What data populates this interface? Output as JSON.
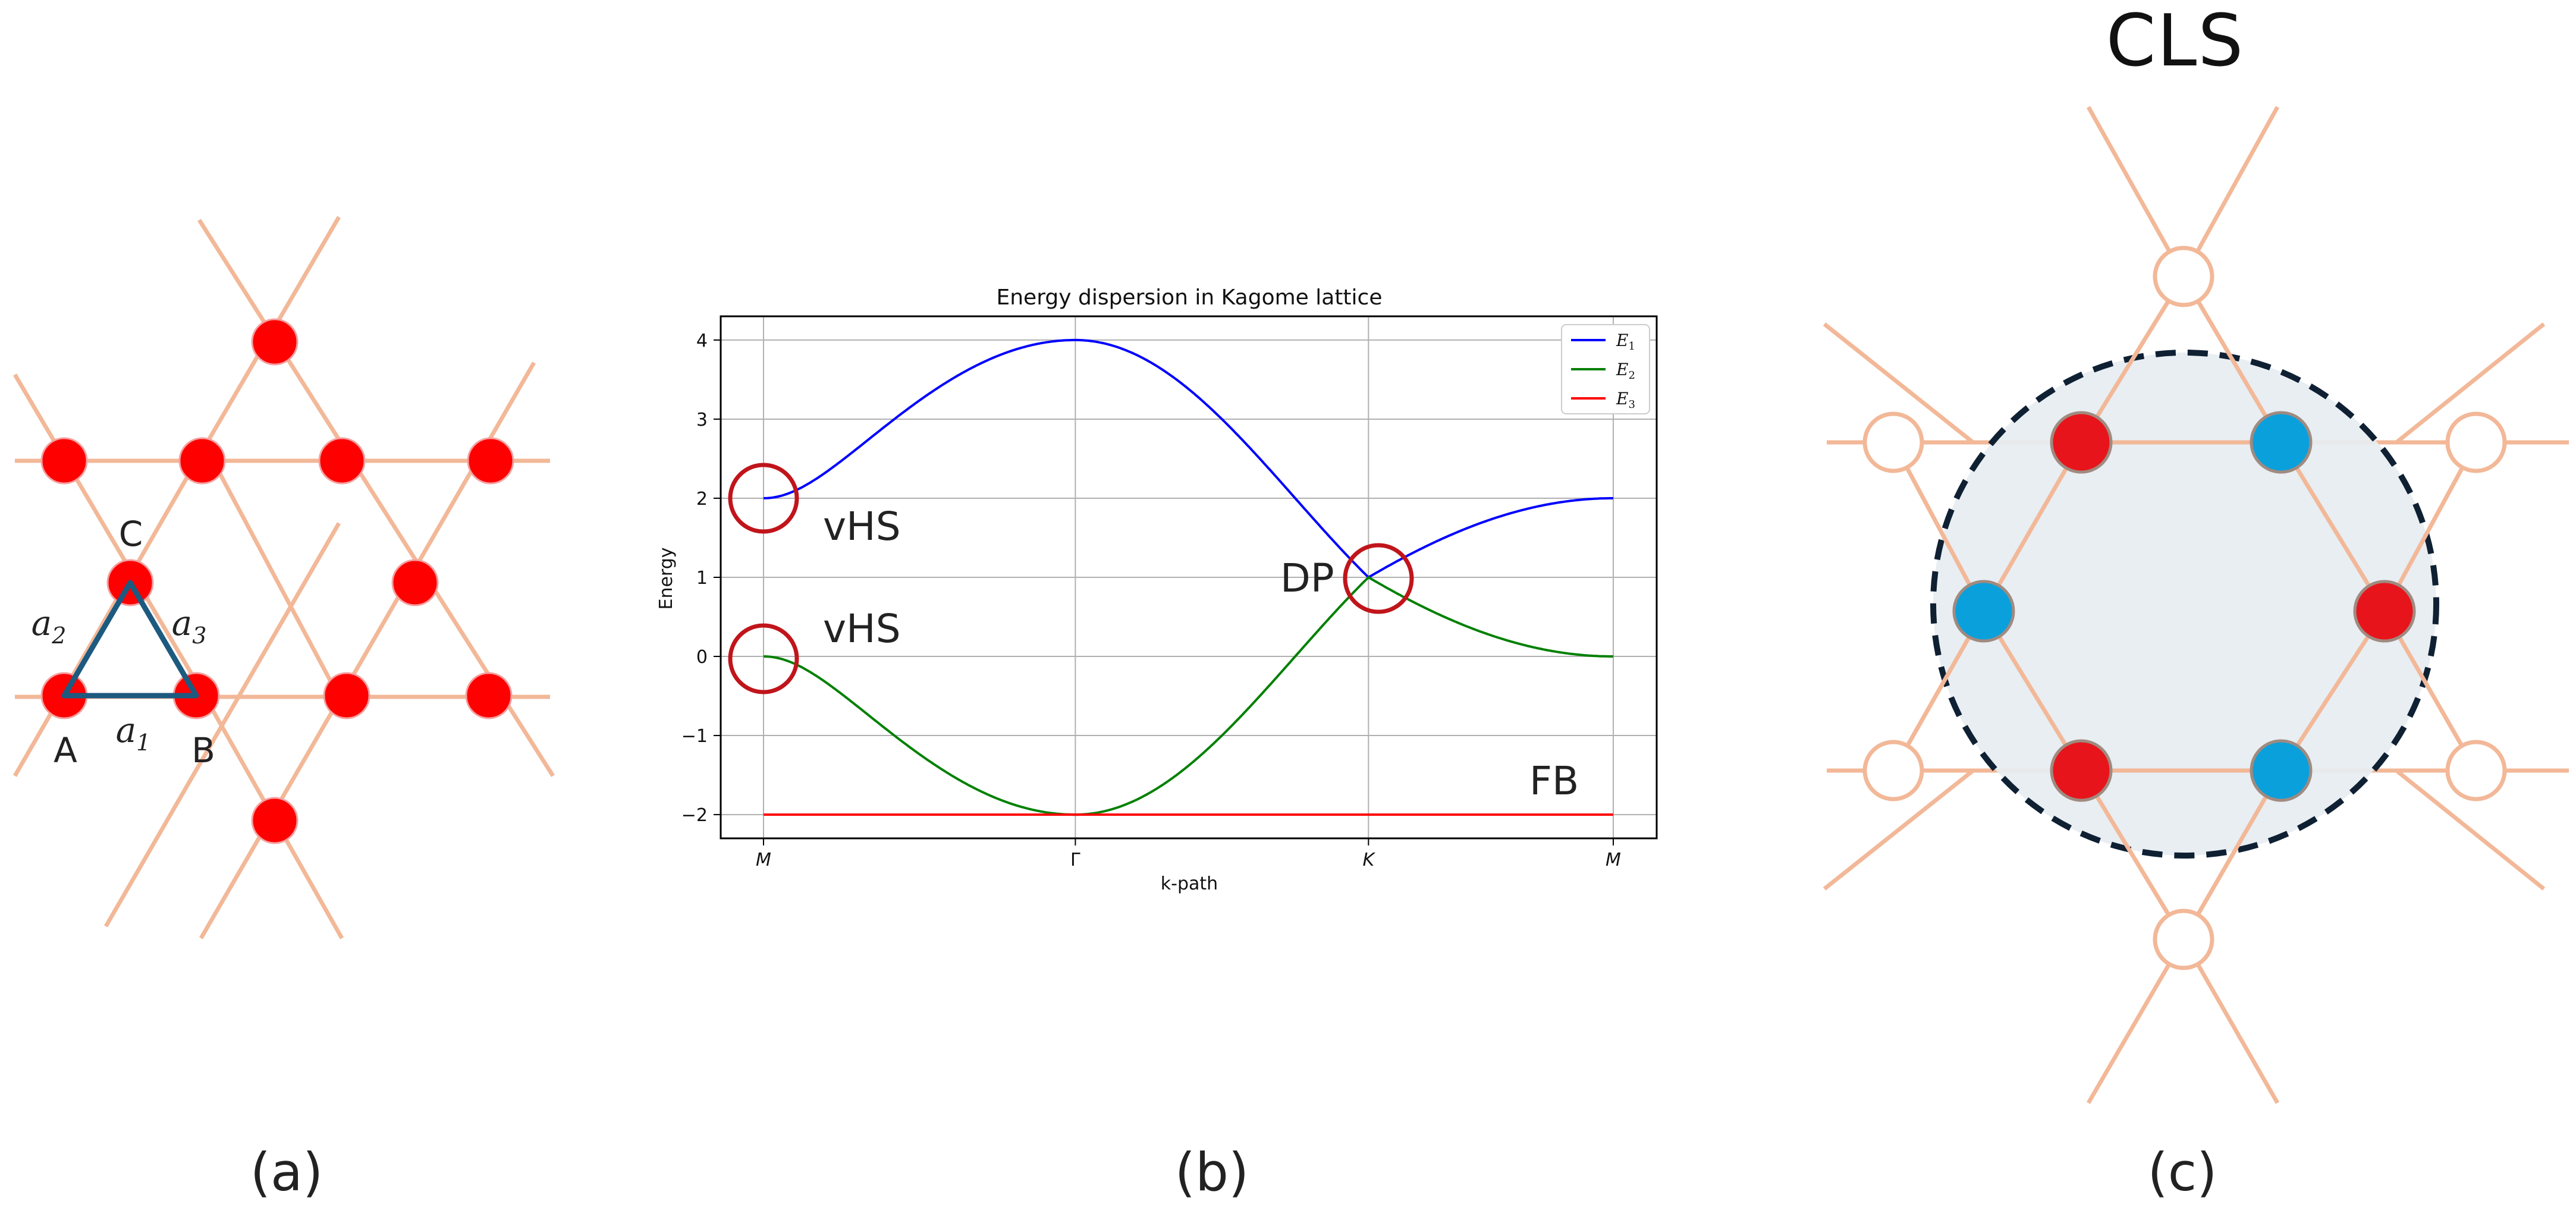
{
  "panels": {
    "a": {
      "caption": "(a)",
      "site_labels": [
        "A",
        "B",
        "C"
      ],
      "vector_labels": [
        "a1",
        "a2",
        "a3"
      ]
    },
    "b": {
      "caption": "(b)",
      "annotations": [
        "vHS",
        "vHS",
        "DP",
        "FB"
      ]
    },
    "c": {
      "caption": "(c)",
      "title": "CLS"
    }
  },
  "colors": {
    "bond": "#f2b898",
    "site_red": "#ff0000",
    "site_red_c": "#e8141b",
    "site_blue": "#0aa0dc",
    "triangle": "#1d5a80",
    "marker_circle": "#c0151b",
    "cls_fill": "#e6edf1",
    "cls_border": "#0f2033",
    "E1": "#0000ff",
    "E2": "#008000",
    "E3": "#ff0000"
  },
  "chart_data": {
    "type": "line",
    "title": "Energy dispersion in Kagome lattice",
    "xlabel": "k-path",
    "ylabel": "Energy",
    "xticks": [
      "M",
      "Γ",
      "K",
      "M"
    ],
    "yticks": [
      4,
      3,
      2,
      1,
      0,
      -1,
      -2
    ],
    "ylim": [
      -2.3,
      4.3
    ],
    "grid": true,
    "legend_position": "top-right",
    "legend": [
      "E1",
      "E2",
      "E3"
    ],
    "series": [
      {
        "name": "E1",
        "k_segments": [
          [
            "M",
            "Γ"
          ],
          [
            "Γ",
            "K"
          ],
          [
            "K",
            "M"
          ]
        ],
        "values_at_ticks": [
          2,
          4,
          1,
          2
        ]
      },
      {
        "name": "E2",
        "values_at_ticks": [
          0,
          -2,
          1,
          0
        ]
      },
      {
        "name": "E3",
        "values_at_ticks": [
          -2,
          -2,
          -2,
          -2
        ]
      }
    ]
  }
}
